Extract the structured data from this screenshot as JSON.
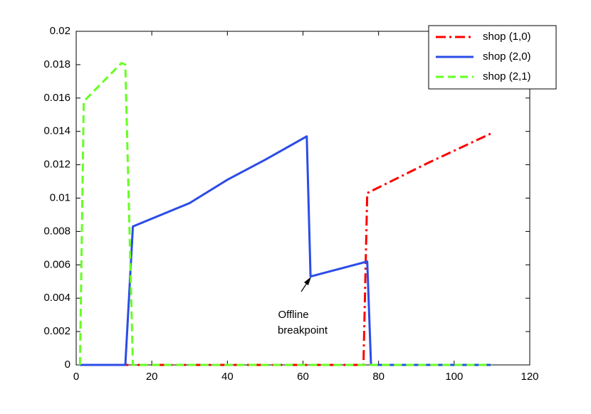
{
  "chart_data": {
    "type": "line",
    "xlim": [
      0,
      120
    ],
    "xticks": [
      0,
      20,
      40,
      60,
      80,
      100,
      120
    ],
    "ylim": [
      0,
      0.02
    ],
    "yticks": [
      0,
      0.002,
      0.004,
      0.006,
      0.008,
      0.01,
      0.012,
      0.014,
      0.016,
      0.018,
      0.02
    ],
    "legend": "northeast",
    "annotation": [
      "Offline",
      "breakpoint"
    ],
    "series": [
      {
        "name": "shop (1,0)",
        "color": "#ff0000",
        "dash": "dash-dot",
        "x": [
          1,
          76,
          77,
          93,
          110
        ],
        "values": [
          0,
          0,
          0.0103,
          0.0121,
          0.0139
        ]
      },
      {
        "name": "shop (2,0)",
        "color": "#2b4ce8",
        "dash": "solid",
        "x": [
          1,
          13,
          15,
          30,
          40,
          50,
          61,
          62,
          77,
          78,
          110
        ],
        "values": [
          0,
          0,
          0.0083,
          0.0097,
          0.0111,
          0.0123,
          0.0137,
          0.0053,
          0.0062,
          0,
          0
        ]
      },
      {
        "name": "shop (2,1)",
        "color": "#66ff22",
        "dash": "dashed",
        "x": [
          1,
          2,
          12,
          13,
          15,
          110
        ],
        "values": [
          0,
          0.0158,
          0.0181,
          0.018,
          0,
          0
        ]
      }
    ]
  }
}
